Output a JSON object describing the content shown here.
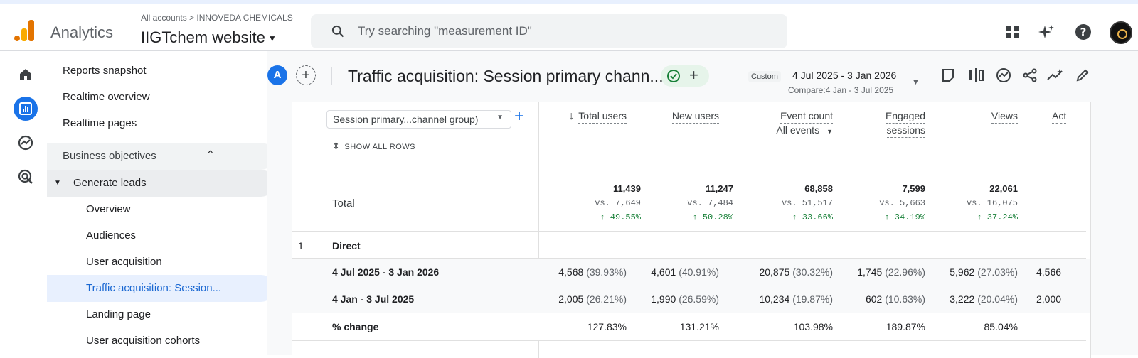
{
  "app": {
    "name": "Analytics"
  },
  "account": {
    "breadcrumb": "All accounts > INNOVEDA CHEMICALS",
    "property": "IIGTchem website"
  },
  "search": {
    "placeholder": "Try searching \"measurement ID\""
  },
  "top_icons": [
    "apps-icon",
    "sparkle-icon",
    "help-icon"
  ],
  "rail": [
    "home-icon",
    "reports-icon",
    "explore-icon",
    "advertising-icon"
  ],
  "nav": {
    "links": [
      "Reports snapshot",
      "Realtime overview",
      "Realtime pages"
    ],
    "section": "Business objectives",
    "group": "Generate leads",
    "subitems": [
      "Overview",
      "Audiences",
      "User acquisition",
      "Traffic acquisition: Session...",
      "Landing page",
      "User acquisition cohorts"
    ]
  },
  "report": {
    "segment_badge": "A",
    "title": "Traffic acquisition: Session primary chann...",
    "range_tag": "Custom",
    "range": "4 Jul 2025 - 3 Jan 2026",
    "compare": "Compare:4 Jan - 3 Jul 2025"
  },
  "table": {
    "dimension": "Session primary...channel group)",
    "show_all": "SHOW ALL ROWS",
    "columns": [
      {
        "label": "Total users",
        "sub": ""
      },
      {
        "label": "New users",
        "sub": ""
      },
      {
        "label": "Event count",
        "sub": "All events"
      },
      {
        "label": "Engaged",
        "label2": "sessions"
      },
      {
        "label": "Views",
        "sub": ""
      },
      {
        "label": "Act",
        "sub": ""
      }
    ],
    "total_label": "Total",
    "totals": [
      {
        "value": "11,439",
        "vs": "vs. 7,649",
        "change": "↑ 49.55%"
      },
      {
        "value": "11,247",
        "vs": "vs. 7,484",
        "change": "↑ 50.28%"
      },
      {
        "value": "68,858",
        "vs": "vs. 51,517",
        "change": "↑ 33.66%"
      },
      {
        "value": "7,599",
        "vs": "vs. 5,663",
        "change": "↑ 34.19%"
      },
      {
        "value": "22,061",
        "vs": "vs. 16,075",
        "change": "↑ 37.24%"
      }
    ],
    "row_index": "1",
    "row_name": "Direct",
    "rows": [
      {
        "label": "4 Jul 2025 - 3 Jan 2026",
        "cells": [
          [
            "4,568",
            "(39.93%)"
          ],
          [
            "4,601",
            "(40.91%)"
          ],
          [
            "20,875",
            "(30.32%)"
          ],
          [
            "1,745",
            "(22.96%)"
          ],
          [
            "5,962",
            "(27.03%)"
          ],
          [
            "4,566",
            ""
          ]
        ]
      },
      {
        "label": "4 Jan - 3 Jul 2025",
        "cells": [
          [
            "2,005",
            "(26.21%)"
          ],
          [
            "1,990",
            "(26.59%)"
          ],
          [
            "10,234",
            "(19.87%)"
          ],
          [
            "602",
            "(10.63%)"
          ],
          [
            "3,222",
            "(20.04%)"
          ],
          [
            "2,000",
            ""
          ]
        ]
      },
      {
        "label": "% change",
        "cells": [
          [
            "127.83%",
            ""
          ],
          [
            "131.21%",
            ""
          ],
          [
            "103.98%",
            ""
          ],
          [
            "189.87%",
            ""
          ],
          [
            "85.04%",
            ""
          ],
          [
            "",
            ""
          ]
        ]
      }
    ]
  }
}
